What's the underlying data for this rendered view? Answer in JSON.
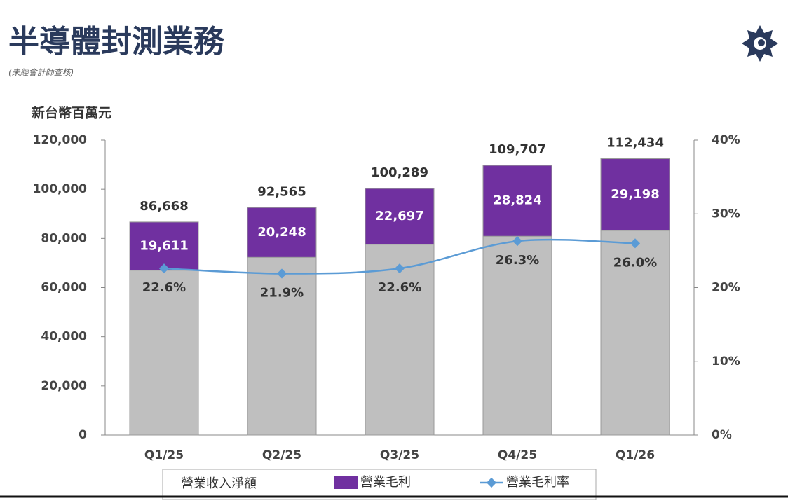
{
  "chart_data": {
    "type": "bar",
    "title": "半導體封測業務",
    "subtitle": "(未經會計師查核)",
    "y_axis_label": "新台幣百萬元",
    "categories": [
      "Q1/25",
      "Q2/25",
      "Q3/25",
      "Q4/25",
      "Q1/26"
    ],
    "series": [
      {
        "name": "營業收入淨額",
        "color": "#bfbfbf",
        "values": [
          86668,
          92565,
          100289,
          109707,
          112434
        ],
        "value_labels": [
          "86,668",
          "92,565",
          "100,289",
          "109,707",
          "112,434"
        ]
      },
      {
        "name": "營業毛利",
        "color": "#7030a0",
        "values": [
          19611,
          20248,
          22697,
          28824,
          29198
        ],
        "value_labels": [
          "19,611",
          "20,248",
          "22,697",
          "28,824",
          "29,198"
        ]
      },
      {
        "name": "營業毛利率",
        "color": "#5b9bd5",
        "axis": "y2",
        "values": [
          22.6,
          21.9,
          22.6,
          26.3,
          26.0
        ],
        "value_labels": [
          "22.6%",
          "21.9%",
          "22.6%",
          "26.3%",
          "26.0%"
        ]
      }
    ],
    "ylim": [
      0,
      120000
    ],
    "yticks": [
      0,
      {
        "value": 20000,
        "label": "20,000"
      },
      {
        "value": 40000,
        "label": "40,000"
      },
      {
        "value": 60000,
        "label": "60,000"
      },
      {
        "value": 80000,
        "label": "80,000"
      },
      {
        "value": 100000,
        "label": "100,000"
      },
      {
        "value": 120000,
        "label": "120,000"
      }
    ],
    "y2lim": [
      0,
      40
    ],
    "y2ticks": [
      {
        "value": 0,
        "label": "0%"
      },
      {
        "value": 10,
        "label": "10%"
      },
      {
        "value": 20,
        "label": "20%"
      },
      {
        "value": 30,
        "label": "30%"
      },
      {
        "value": 40,
        "label": "40%"
      }
    ]
  }
}
